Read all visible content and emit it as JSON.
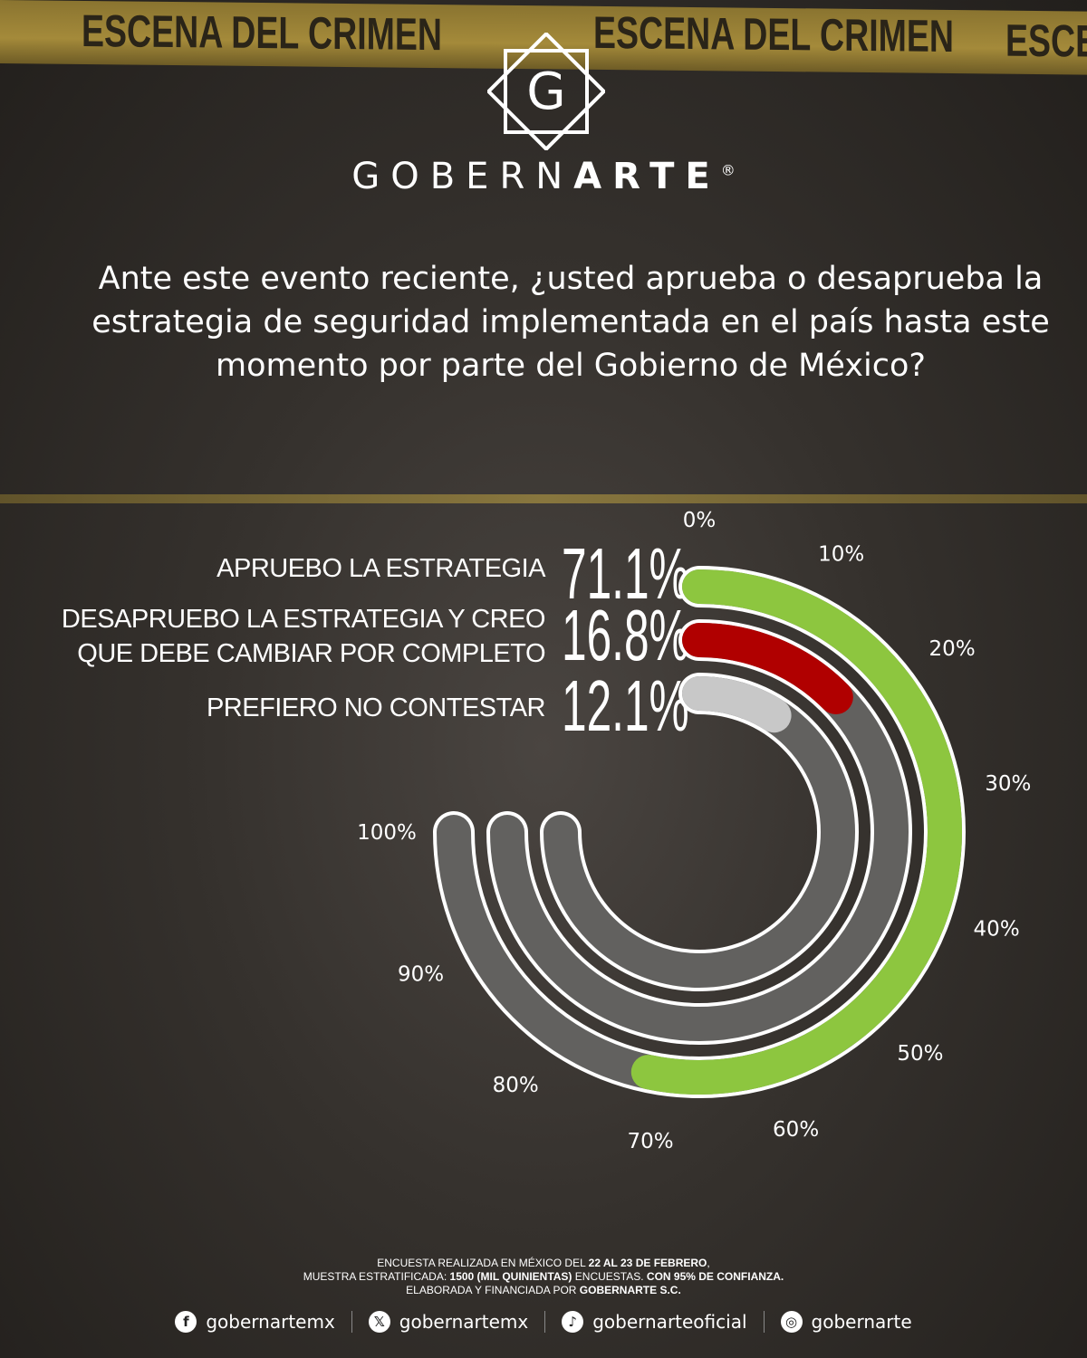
{
  "background_tape_text": "ESCENA DEL CRIMEN",
  "brand": {
    "light": "GOBERN",
    "bold": "ARTE",
    "reg": "®",
    "logo_letter": "G"
  },
  "question": "Ante este evento reciente, ¿usted aprueba o desaprueba la estrategia de seguridad implementada en el país hasta este momento por parte del Gobierno de México?",
  "chart_data": {
    "type": "radial-bar",
    "categories": [
      "APRUEBO LA ESTRATEGIA",
      "DESAPRUEBO LA ESTRATEGIA Y CREO QUE DEBE CAMBIAR POR COMPLETO",
      "PREFIERO NO CONTESTAR"
    ],
    "label_lines": [
      [
        "APRUEBO LA ESTRATEGIA"
      ],
      [
        "DESAPRUEBO LA ESTRATEGIA Y CREO",
        "QUE DEBE CAMBIAR POR COMPLETO"
      ],
      [
        "PREFIERO NO CONTESTAR"
      ]
    ],
    "values": [
      71.1,
      16.8,
      12.1
    ],
    "value_labels": [
      "71.1%",
      "16.8%",
      "12.1%"
    ],
    "colors": [
      "#8dc63f",
      "#b00000",
      "#c8c8c8"
    ],
    "track_color": "#5a5856",
    "range": [
      0,
      100
    ],
    "tick_labels": [
      "0%",
      "10%",
      "20%",
      "30%",
      "40%",
      "50%",
      "60%",
      "70%",
      "80%",
      "90%",
      "100%"
    ]
  },
  "footer": {
    "line1": [
      "ENCUESTA REALIZADA EN MÉXICO DEL ",
      "22 AL 23 DE FEBRERO",
      ","
    ],
    "line2": [
      "MUESTRA ESTRATIFICADA: ",
      "1500 (MIL QUINIENTAS)",
      " ENCUESTAS. ",
      "CON 95% DE CONFIANZA."
    ],
    "line3": [
      "ELABORADA Y FINANCIADA POR ",
      "GOBERNARTE S.C."
    ]
  },
  "social": [
    {
      "icon": "facebook-icon",
      "glyph": "f",
      "handle": "gobernartemx"
    },
    {
      "icon": "x-icon",
      "glyph": "𝕏",
      "handle": "gobernartemx"
    },
    {
      "icon": "tiktok-icon",
      "glyph": "♪",
      "handle": "gobernarteoficial"
    },
    {
      "icon": "instagram-icon",
      "glyph": "◎",
      "handle": "gobernarte"
    }
  ]
}
